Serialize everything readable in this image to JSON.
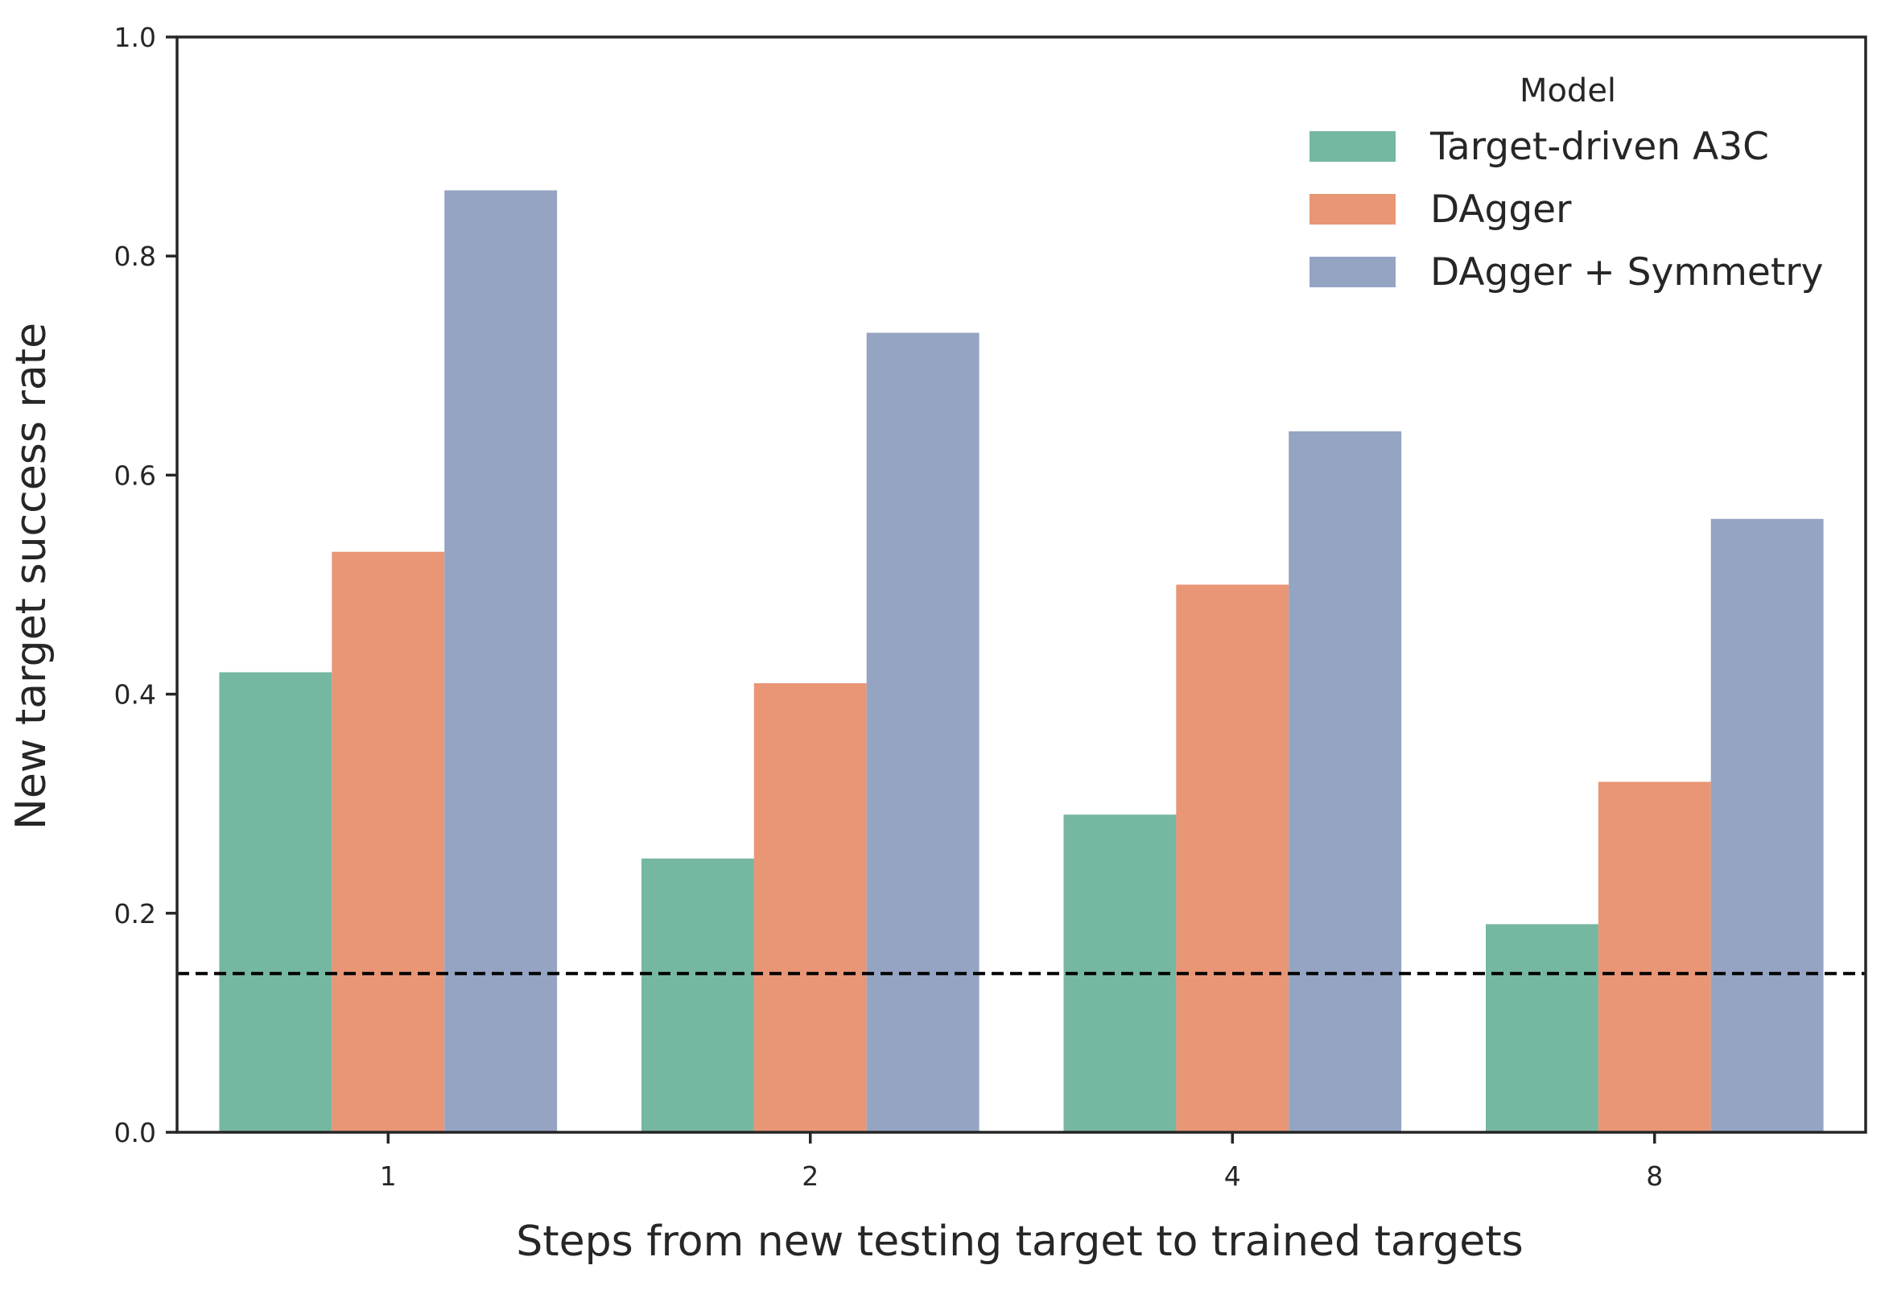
{
  "chart_data": {
    "type": "bar",
    "xlabel": "Steps from new testing target to trained targets",
    "ylabel": "New target success rate",
    "categories": [
      "1",
      "2",
      "4",
      "8"
    ],
    "ylim": [
      0.0,
      1.0
    ],
    "yticks": [
      "0.0",
      "0.2",
      "0.4",
      "0.6",
      "0.8",
      "1.0"
    ],
    "ytick_values": [
      0.0,
      0.2,
      0.4,
      0.6,
      0.8,
      1.0
    ],
    "grid": false,
    "legend": {
      "title": "Model",
      "placement": "top-right"
    },
    "series": [
      {
        "name": "Target-driven A3C",
        "color": "#76b7a1",
        "values": [
          0.42,
          0.25,
          0.29,
          0.19
        ]
      },
      {
        "name": "DAgger",
        "color": "#e99676",
        "values": [
          0.53,
          0.41,
          0.5,
          0.32
        ]
      },
      {
        "name": "DAgger + Symmetry",
        "color": "#95a4c3",
        "values": [
          0.86,
          0.73,
          0.64,
          0.56
        ]
      }
    ],
    "reference_line": {
      "y": 0.145,
      "style": "dashed",
      "color": "#000000"
    }
  }
}
